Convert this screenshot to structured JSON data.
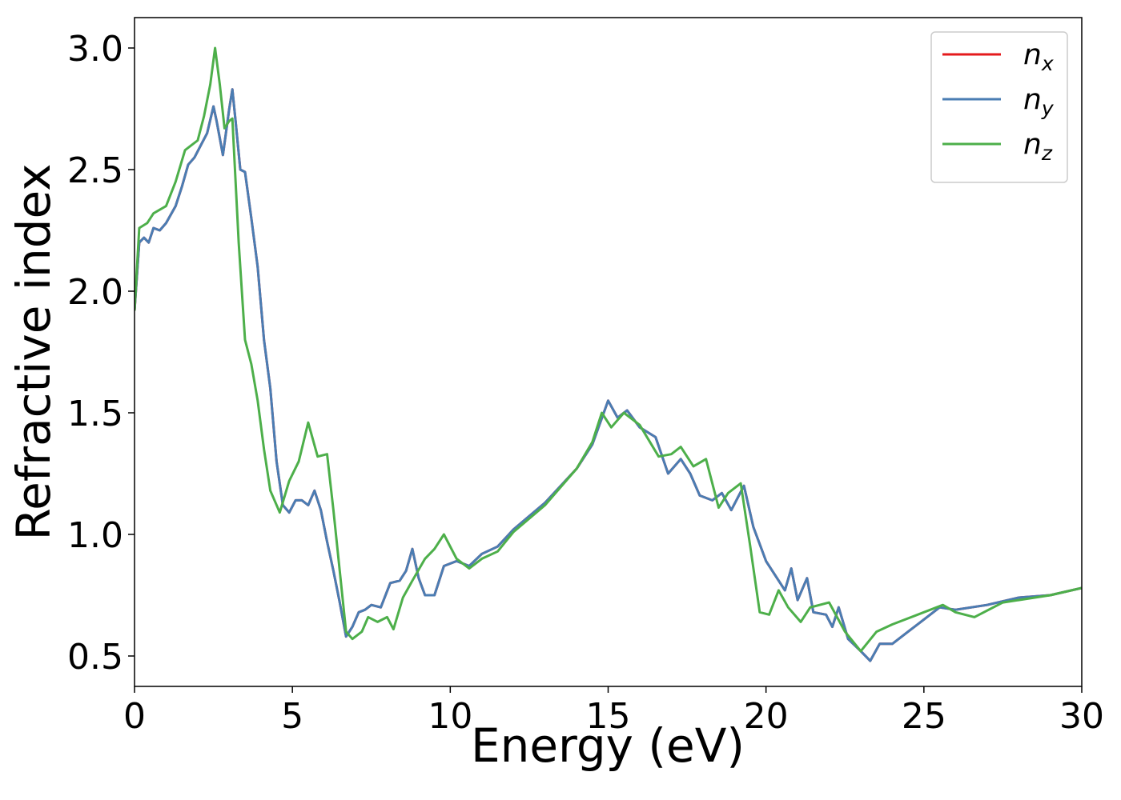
{
  "chart_data": {
    "type": "line",
    "xlabel": "Energy (eV)",
    "ylabel": "Refractive index",
    "xlim": [
      0,
      30
    ],
    "ylim": [
      0.375,
      3.125
    ],
    "xticks": [
      0,
      5,
      10,
      15,
      20,
      25,
      30
    ],
    "yticks": [
      0.5,
      {
        "value": 1,
        "label": "1.0"
      },
      1.5,
      {
        "value": 2,
        "label": "2.0"
      },
      2.5,
      {
        "value": 3,
        "label": "3.0"
      }
    ],
    "legend": "upper right",
    "series": [
      {
        "name": "nx",
        "color": "#e41a1c",
        "x": [
          0,
          0.15,
          0.3,
          0.45,
          0.6,
          0.8,
          1.0,
          1.3,
          1.5,
          1.7,
          1.9,
          2.1,
          2.3,
          2.5,
          2.6,
          2.8,
          3.0,
          3.1,
          3.2,
          3.35,
          3.5,
          3.7,
          3.9,
          4.1,
          4.3,
          4.5,
          4.7,
          4.9,
          5.1,
          5.3,
          5.5,
          5.7,
          5.9,
          6.1,
          6.3,
          6.5,
          6.7,
          6.9,
          7.1,
          7.3,
          7.5,
          7.8,
          8.1,
          8.4,
          8.6,
          8.8,
          9.0,
          9.2,
          9.5,
          9.8,
          10.2,
          10.6,
          11.0,
          11.5,
          12.0,
          13.0,
          14.0,
          14.5,
          15.0,
          15.3,
          15.6,
          16.0,
          16.5,
          16.9,
          17.3,
          17.6,
          17.9,
          18.3,
          18.6,
          18.9,
          19.3,
          19.6,
          20.0,
          20.3,
          20.6,
          20.8,
          21.0,
          21.3,
          21.5,
          21.9,
          22.1,
          22.3,
          22.6,
          23.0,
          23.3,
          23.6,
          24.0,
          24.5,
          25.0,
          25.5,
          26.0,
          27.0,
          28.0,
          29.0,
          30.0
        ],
        "values": [
          1.92,
          2.2,
          2.22,
          2.2,
          2.26,
          2.25,
          2.28,
          2.35,
          2.43,
          2.52,
          2.55,
          2.6,
          2.65,
          2.76,
          2.7,
          2.56,
          2.75,
          2.83,
          2.7,
          2.5,
          2.49,
          2.3,
          2.1,
          1.8,
          1.6,
          1.3,
          1.12,
          1.09,
          1.14,
          1.14,
          1.12,
          1.18,
          1.1,
          0.97,
          0.85,
          0.72,
          0.58,
          0.62,
          0.68,
          0.69,
          0.71,
          0.7,
          0.8,
          0.81,
          0.85,
          0.94,
          0.82,
          0.75,
          0.75,
          0.87,
          0.89,
          0.87,
          0.92,
          0.95,
          1.02,
          1.13,
          1.27,
          1.37,
          1.55,
          1.48,
          1.51,
          1.44,
          1.4,
          1.25,
          1.31,
          1.25,
          1.16,
          1.14,
          1.17,
          1.1,
          1.2,
          1.03,
          0.89,
          0.83,
          0.77,
          0.86,
          0.73,
          0.82,
          0.68,
          0.67,
          0.62,
          0.7,
          0.57,
          0.52,
          0.48,
          0.55,
          0.55,
          0.6,
          0.65,
          0.7,
          0.69,
          0.71,
          0.74,
          0.75,
          0.78
        ]
      },
      {
        "name": "ny",
        "color": "#4a7db3",
        "x": [
          0,
          0.15,
          0.3,
          0.45,
          0.6,
          0.8,
          1.0,
          1.3,
          1.5,
          1.7,
          1.9,
          2.1,
          2.3,
          2.5,
          2.6,
          2.8,
          3.0,
          3.1,
          3.2,
          3.35,
          3.5,
          3.7,
          3.9,
          4.1,
          4.3,
          4.5,
          4.7,
          4.9,
          5.1,
          5.3,
          5.5,
          5.7,
          5.9,
          6.1,
          6.3,
          6.5,
          6.7,
          6.9,
          7.1,
          7.3,
          7.5,
          7.8,
          8.1,
          8.4,
          8.6,
          8.8,
          9.0,
          9.2,
          9.5,
          9.8,
          10.2,
          10.6,
          11.0,
          11.5,
          12.0,
          13.0,
          14.0,
          14.5,
          15.0,
          15.3,
          15.6,
          16.0,
          16.5,
          16.9,
          17.3,
          17.6,
          17.9,
          18.3,
          18.6,
          18.9,
          19.3,
          19.6,
          20.0,
          20.3,
          20.6,
          20.8,
          21.0,
          21.3,
          21.5,
          21.9,
          22.1,
          22.3,
          22.6,
          23.0,
          23.3,
          23.6,
          24.0,
          24.5,
          25.0,
          25.5,
          26.0,
          27.0,
          28.0,
          29.0,
          30.0
        ],
        "values": [
          1.92,
          2.2,
          2.22,
          2.2,
          2.26,
          2.25,
          2.28,
          2.35,
          2.43,
          2.52,
          2.55,
          2.6,
          2.65,
          2.76,
          2.7,
          2.56,
          2.75,
          2.83,
          2.7,
          2.5,
          2.49,
          2.3,
          2.1,
          1.8,
          1.6,
          1.3,
          1.12,
          1.09,
          1.14,
          1.14,
          1.12,
          1.18,
          1.1,
          0.97,
          0.85,
          0.72,
          0.58,
          0.62,
          0.68,
          0.69,
          0.71,
          0.7,
          0.8,
          0.81,
          0.85,
          0.94,
          0.82,
          0.75,
          0.75,
          0.87,
          0.89,
          0.87,
          0.92,
          0.95,
          1.02,
          1.13,
          1.27,
          1.37,
          1.55,
          1.48,
          1.51,
          1.44,
          1.4,
          1.25,
          1.31,
          1.25,
          1.16,
          1.14,
          1.17,
          1.1,
          1.2,
          1.03,
          0.89,
          0.83,
          0.77,
          0.86,
          0.73,
          0.82,
          0.68,
          0.67,
          0.62,
          0.7,
          0.57,
          0.52,
          0.48,
          0.55,
          0.55,
          0.6,
          0.65,
          0.7,
          0.69,
          0.71,
          0.74,
          0.75,
          0.78
        ]
      },
      {
        "name": "nz",
        "color": "#4daf4a",
        "x": [
          0,
          0.15,
          0.4,
          0.6,
          1.0,
          1.3,
          1.6,
          1.8,
          2.0,
          2.2,
          2.4,
          2.55,
          2.7,
          2.85,
          3.0,
          3.1,
          3.3,
          3.5,
          3.7,
          3.9,
          4.1,
          4.3,
          4.6,
          4.9,
          5.2,
          5.5,
          5.8,
          6.1,
          6.3,
          6.5,
          6.7,
          6.9,
          7.2,
          7.4,
          7.7,
          8.0,
          8.2,
          8.5,
          8.8,
          9.2,
          9.5,
          9.8,
          10.2,
          10.6,
          11.0,
          11.5,
          12.0,
          13.0,
          14.0,
          14.5,
          14.8,
          15.1,
          15.5,
          16.0,
          16.6,
          17.0,
          17.3,
          17.7,
          18.1,
          18.5,
          18.8,
          19.2,
          19.5,
          19.8,
          20.1,
          20.4,
          20.7,
          21.1,
          21.4,
          22.0,
          22.5,
          23.0,
          23.5,
          24.0,
          25.0,
          25.6,
          26.0,
          26.6,
          27.5,
          28.0,
          29.0,
          30.0
        ],
        "values": [
          1.92,
          2.26,
          2.28,
          2.32,
          2.35,
          2.45,
          2.58,
          2.6,
          2.62,
          2.72,
          2.85,
          3.0,
          2.85,
          2.67,
          2.7,
          2.71,
          2.2,
          1.8,
          1.7,
          1.55,
          1.35,
          1.18,
          1.09,
          1.22,
          1.3,
          1.46,
          1.32,
          1.33,
          1.1,
          0.85,
          0.6,
          0.57,
          0.6,
          0.66,
          0.64,
          0.66,
          0.61,
          0.74,
          0.81,
          0.9,
          0.94,
          1.0,
          0.9,
          0.86,
          0.9,
          0.93,
          1.01,
          1.12,
          1.27,
          1.38,
          1.5,
          1.44,
          1.5,
          1.45,
          1.32,
          1.33,
          1.36,
          1.28,
          1.31,
          1.11,
          1.17,
          1.21,
          0.95,
          0.68,
          0.67,
          0.77,
          0.7,
          0.64,
          0.7,
          0.72,
          0.6,
          0.52,
          0.6,
          0.63,
          0.68,
          0.71,
          0.68,
          0.66,
          0.72,
          0.73,
          0.75,
          0.78
        ]
      }
    ]
  }
}
